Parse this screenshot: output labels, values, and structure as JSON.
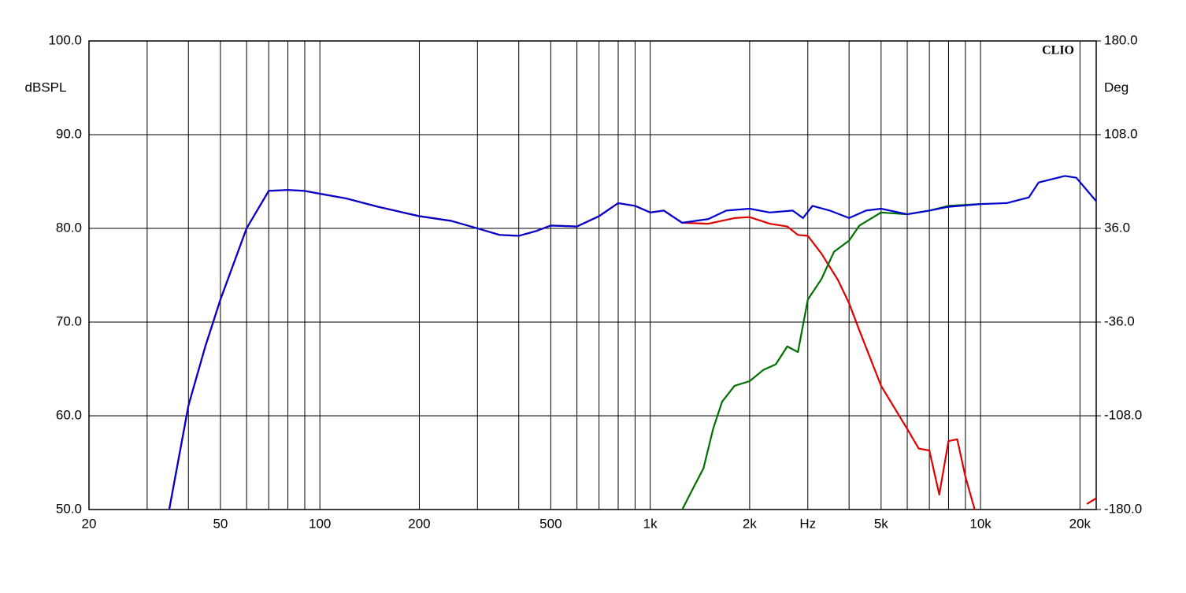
{
  "chart_data": {
    "type": "line",
    "log_x": true,
    "grid": true,
    "watermark": "CLIO",
    "ylabel": "dBSPL",
    "y2label": "Deg",
    "xlim": [
      20,
      22400
    ],
    "ylim": [
      50,
      100
    ],
    "y2lim": [
      -180,
      180
    ],
    "xticks": [
      20,
      50,
      100,
      200,
      500,
      {
        "value": 1000,
        "label": "1k"
      },
      {
        "value": 2000,
        "label": "2k"
      },
      {
        "value": 3000,
        "label": "Hz"
      },
      {
        "value": 5000,
        "label": "5k"
      },
      {
        "value": 10000,
        "label": "10k"
      },
      {
        "value": 20000,
        "label": "20k"
      }
    ],
    "xgrid": [
      30,
      40,
      60,
      70,
      80,
      90,
      300,
      400,
      600,
      700,
      800,
      900,
      4000,
      6000,
      7000,
      8000,
      9000
    ],
    "yticks": [
      {
        "value": 50,
        "label": "50.0"
      },
      {
        "value": 60,
        "label": "60.0"
      },
      {
        "value": 70,
        "label": "70.0"
      },
      {
        "value": 80,
        "label": "80.0"
      },
      {
        "value": 90,
        "label": "90.0"
      },
      {
        "value": 100,
        "label": "100.0"
      }
    ],
    "y2ticks": [
      {
        "value": -180,
        "label": "-180.0"
      },
      {
        "value": -108,
        "label": "-108.0"
      },
      {
        "value": -36,
        "label": "-36.0"
      },
      {
        "value": 36,
        "label": "36.0"
      },
      {
        "value": 108,
        "label": "108.0"
      },
      {
        "value": 180,
        "label": "180.0"
      }
    ],
    "series": [
      {
        "color": "#e00000",
        "x": [
          35,
          40,
          45,
          50,
          60,
          70,
          80,
          90,
          100,
          120,
          150,
          200,
          250,
          300,
          350,
          400,
          450,
          500,
          600,
          700,
          800,
          900,
          1000,
          1100,
          1250,
          1500,
          1800,
          2000,
          2300,
          2600,
          2800,
          3000,
          3300,
          3700,
          4000,
          4300,
          5000,
          6000,
          6500,
          7000,
          7500,
          8000,
          8500,
          9000,
          9600,
          15000,
          21000,
          22400
        ],
        "values": [
          50,
          61.1,
          67.4,
          72.4,
          80,
          84.0,
          84.1,
          84.0,
          83.7,
          83.2,
          82.3,
          81.3,
          80.8,
          80.0,
          79.3,
          79.2,
          79.7,
          80.3,
          80.2,
          81.3,
          82.7,
          82.4,
          81.7,
          81.9,
          80.6,
          80.5,
          81.1,
          81.2,
          80.5,
          80.2,
          79.3,
          79.2,
          77.3,
          74.5,
          72.0,
          69.1,
          63.2,
          58.6,
          56.5,
          56.3,
          51.6,
          57.3,
          57.5,
          53.5,
          50,
          null,
          50.6,
          51.2
        ]
      },
      {
        "color": "#007000",
        "x": [
          1250,
          1350,
          1450,
          1550,
          1650,
          1800,
          2000,
          2200,
          2400,
          2600,
          2800,
          3000,
          3300,
          3600,
          4000,
          4300,
          5000,
          6000,
          7000,
          8000,
          10000
        ],
        "values": [
          50,
          52.3,
          54.4,
          58.6,
          61.5,
          63.2,
          63.7,
          64.9,
          65.5,
          67.4,
          66.8,
          72.4,
          74.6,
          77.5,
          78.7,
          80.3,
          81.7,
          81.5,
          81.9,
          82.4,
          82.6
        ]
      },
      {
        "color": "#0000d0",
        "x": [
          35,
          40,
          45,
          50,
          60,
          70,
          80,
          90,
          100,
          120,
          150,
          200,
          250,
          300,
          350,
          400,
          450,
          500,
          600,
          700,
          800,
          900,
          1000,
          1100,
          1250,
          1500,
          1700,
          2000,
          2300,
          2700,
          2900,
          3100,
          3500,
          4000,
          4500,
          5000,
          6000,
          7000,
          8000,
          10000,
          12000,
          14000,
          15000,
          18000,
          19500,
          22400
        ],
        "values": [
          50,
          61.1,
          67.4,
          72.4,
          80,
          84.0,
          84.1,
          84.0,
          83.7,
          83.2,
          82.3,
          81.3,
          80.8,
          80.0,
          79.3,
          79.2,
          79.7,
          80.3,
          80.2,
          81.3,
          82.7,
          82.4,
          81.7,
          81.9,
          80.6,
          81.0,
          81.9,
          82.1,
          81.7,
          81.9,
          81.1,
          82.4,
          81.9,
          81.1,
          81.9,
          82.1,
          81.5,
          81.9,
          82.3,
          82.6,
          82.7,
          83.3,
          84.9,
          85.6,
          85.4,
          82.9
        ]
      }
    ]
  }
}
